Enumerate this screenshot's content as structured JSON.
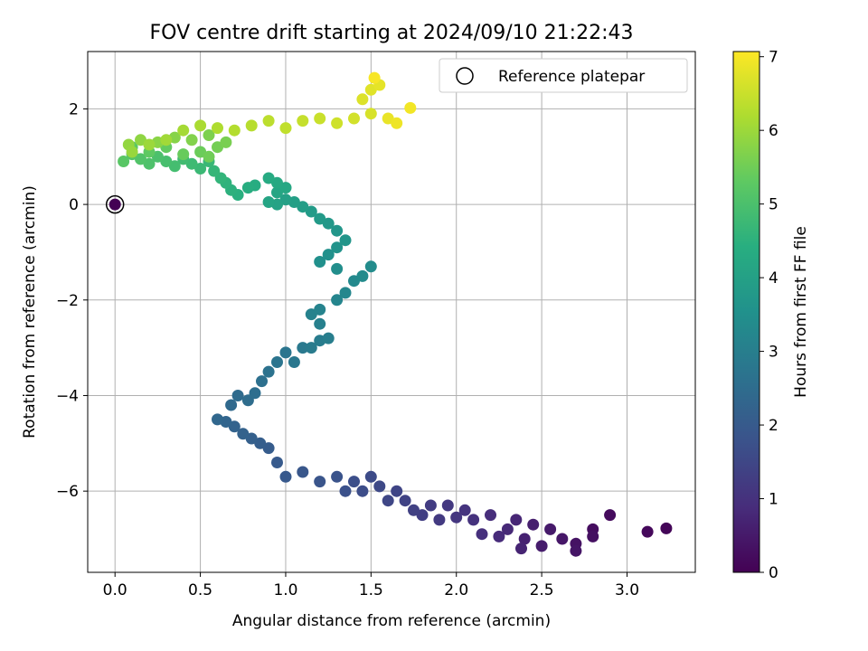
{
  "chart_data": {
    "type": "scatter",
    "title": "FOV centre drift starting at 2024/09/10 21:22:43",
    "xlabel": "Angular distance from reference (arcmin)",
    "ylabel": "Rotation from reference (arcmin)",
    "xlim": [
      -0.16,
      3.4
    ],
    "ylim": [
      -7.7,
      3.2
    ],
    "xticks": [
      0.0,
      0.5,
      1.0,
      1.5,
      2.0,
      2.5,
      3.0
    ],
    "xtick_labels": [
      "0.0",
      "0.5",
      "1.0",
      "1.5",
      "2.0",
      "2.5",
      "3.0"
    ],
    "yticks": [
      2,
      0,
      -2,
      -4,
      -6
    ],
    "ytick_labels": [
      "2",
      "0",
      "−2",
      "−4",
      "−6"
    ],
    "grid": true,
    "colormap": "viridis",
    "colorbar": {
      "label": "Hours from first FF file",
      "range": [
        0,
        7.07
      ],
      "ticks": [
        0,
        1,
        2,
        3,
        4,
        5,
        6,
        7
      ],
      "tick_labels": [
        "0",
        "1",
        "2",
        "3",
        "4",
        "5",
        "6",
        "7"
      ]
    },
    "legend": {
      "position": "top-right",
      "entries": [
        "Reference platepar"
      ]
    },
    "reference_point": {
      "x": 0.0,
      "y": 0.0,
      "hours": 0.0,
      "label": "Reference platepar"
    },
    "series_hours": [
      [
        0.1,
        3.23,
        -6.78
      ],
      [
        0.15,
        3.12,
        -6.85
      ],
      [
        0.2,
        2.9,
        -6.5
      ],
      [
        0.25,
        2.8,
        -6.8
      ],
      [
        0.3,
        2.8,
        -6.95
      ],
      [
        0.35,
        2.7,
        -7.1
      ],
      [
        0.4,
        2.7,
        -7.25
      ],
      [
        0.45,
        2.62,
        -7.0
      ],
      [
        0.5,
        2.55,
        -6.8
      ],
      [
        0.55,
        2.5,
        -7.15
      ],
      [
        0.6,
        2.45,
        -6.7
      ],
      [
        0.65,
        2.4,
        -7.0
      ],
      [
        0.7,
        2.38,
        -7.2
      ],
      [
        0.75,
        2.35,
        -6.6
      ],
      [
        0.8,
        2.3,
        -6.8
      ],
      [
        0.85,
        2.25,
        -6.95
      ],
      [
        0.9,
        2.2,
        -6.5
      ],
      [
        0.95,
        2.15,
        -6.9
      ],
      [
        1.0,
        2.1,
        -6.6
      ],
      [
        1.05,
        2.05,
        -6.4
      ],
      [
        1.1,
        2.0,
        -6.55
      ],
      [
        1.15,
        1.95,
        -6.3
      ],
      [
        1.2,
        1.9,
        -6.6
      ],
      [
        1.25,
        1.85,
        -6.3
      ],
      [
        1.3,
        1.8,
        -6.5
      ],
      [
        1.35,
        1.75,
        -6.4
      ],
      [
        1.4,
        1.7,
        -6.2
      ],
      [
        1.45,
        1.65,
        -6.0
      ],
      [
        1.5,
        1.6,
        -6.2
      ],
      [
        1.55,
        1.55,
        -5.9
      ],
      [
        1.6,
        1.5,
        -5.7
      ],
      [
        1.65,
        1.45,
        -6.0
      ],
      [
        1.7,
        1.4,
        -5.8
      ],
      [
        1.75,
        1.35,
        -6.0
      ],
      [
        1.8,
        1.3,
        -5.7
      ],
      [
        1.85,
        1.2,
        -5.8
      ],
      [
        1.9,
        1.1,
        -5.6
      ],
      [
        1.95,
        1.0,
        -5.7
      ],
      [
        2.0,
        0.95,
        -5.4
      ],
      [
        2.05,
        0.9,
        -5.1
      ],
      [
        2.1,
        0.85,
        -5.0
      ],
      [
        2.15,
        0.8,
        -4.9
      ],
      [
        2.2,
        0.75,
        -4.8
      ],
      [
        2.25,
        0.7,
        -4.65
      ],
      [
        2.3,
        0.65,
        -4.55
      ],
      [
        2.35,
        0.6,
        -4.5
      ],
      [
        2.4,
        0.68,
        -4.2
      ],
      [
        2.45,
        0.72,
        -4.0
      ],
      [
        2.5,
        0.78,
        -4.1
      ],
      [
        2.55,
        0.82,
        -3.95
      ],
      [
        2.6,
        0.86,
        -3.7
      ],
      [
        2.65,
        0.9,
        -3.5
      ],
      [
        2.7,
        0.95,
        -3.3
      ],
      [
        2.75,
        1.0,
        -3.1
      ],
      [
        2.8,
        1.05,
        -3.3
      ],
      [
        2.85,
        1.1,
        -3.0
      ],
      [
        2.9,
        1.15,
        -3.0
      ],
      [
        2.95,
        1.2,
        -2.85
      ],
      [
        3.0,
        1.25,
        -2.8
      ],
      [
        3.05,
        1.2,
        -2.5
      ],
      [
        3.1,
        1.15,
        -2.3
      ],
      [
        3.15,
        1.2,
        -2.2
      ],
      [
        3.2,
        1.3,
        -2.0
      ],
      [
        3.25,
        1.35,
        -1.85
      ],
      [
        3.3,
        1.4,
        -1.6
      ],
      [
        3.35,
        1.45,
        -1.5
      ],
      [
        3.4,
        1.5,
        -1.3
      ],
      [
        3.45,
        1.3,
        -1.35
      ],
      [
        3.5,
        1.2,
        -1.2
      ],
      [
        3.55,
        1.25,
        -1.05
      ],
      [
        3.6,
        1.3,
        -0.9
      ],
      [
        3.65,
        1.35,
        -0.75
      ],
      [
        3.7,
        1.3,
        -0.55
      ],
      [
        3.75,
        1.25,
        -0.4
      ],
      [
        3.8,
        1.2,
        -0.3
      ],
      [
        3.85,
        1.15,
        -0.15
      ],
      [
        3.9,
        1.1,
        -0.05
      ],
      [
        3.95,
        1.05,
        0.05
      ],
      [
        4.0,
        1.0,
        0.1
      ],
      [
        4.05,
        0.95,
        0.0
      ],
      [
        4.1,
        0.9,
        0.05
      ],
      [
        4.15,
        0.95,
        0.25
      ],
      [
        4.2,
        1.0,
        0.35
      ],
      [
        4.25,
        0.95,
        0.45
      ],
      [
        4.3,
        0.9,
        0.55
      ],
      [
        4.35,
        0.82,
        0.4
      ],
      [
        4.4,
        0.78,
        0.35
      ],
      [
        4.45,
        0.72,
        0.2
      ],
      [
        4.5,
        0.68,
        0.3
      ],
      [
        4.55,
        0.65,
        0.45
      ],
      [
        4.6,
        0.62,
        0.55
      ],
      [
        4.65,
        0.58,
        0.7
      ],
      [
        4.7,
        0.55,
        0.9
      ],
      [
        4.75,
        0.5,
        0.75
      ],
      [
        4.8,
        0.45,
        0.85
      ],
      [
        4.85,
        0.4,
        0.95
      ],
      [
        4.9,
        0.35,
        0.8
      ],
      [
        4.95,
        0.3,
        0.9
      ],
      [
        5.0,
        0.25,
        1.0
      ],
      [
        5.05,
        0.2,
        0.85
      ],
      [
        5.1,
        0.15,
        0.95
      ],
      [
        5.15,
        0.1,
        1.05
      ],
      [
        5.2,
        0.05,
        0.9
      ],
      [
        5.25,
        0.1,
        1.2
      ],
      [
        5.3,
        0.2,
        1.1
      ],
      [
        5.35,
        0.3,
        1.2
      ],
      [
        5.4,
        0.4,
        1.05
      ],
      [
        5.45,
        0.5,
        1.1
      ],
      [
        5.5,
        0.55,
        1.0
      ],
      [
        5.55,
        0.6,
        1.2
      ],
      [
        5.6,
        0.65,
        1.3
      ],
      [
        5.65,
        0.55,
        1.45
      ],
      [
        5.7,
        0.45,
        1.35
      ],
      [
        5.75,
        0.35,
        1.4
      ],
      [
        5.8,
        0.25,
        1.3
      ],
      [
        5.85,
        0.15,
        1.35
      ],
      [
        5.9,
        0.08,
        1.25
      ],
      [
        5.95,
        0.1,
        1.1
      ],
      [
        6.0,
        0.2,
        1.25
      ],
      [
        6.05,
        0.3,
        1.35
      ],
      [
        6.1,
        0.4,
        1.55
      ],
      [
        6.15,
        0.5,
        1.65
      ],
      [
        6.2,
        0.6,
        1.6
      ],
      [
        6.25,
        0.7,
        1.55
      ],
      [
        6.3,
        0.8,
        1.65
      ],
      [
        6.35,
        0.9,
        1.75
      ],
      [
        6.4,
        1.0,
        1.6
      ],
      [
        6.45,
        1.1,
        1.75
      ],
      [
        6.5,
        1.2,
        1.8
      ],
      [
        6.55,
        1.3,
        1.7
      ],
      [
        6.6,
        1.4,
        1.8
      ],
      [
        6.65,
        1.5,
        1.9
      ],
      [
        6.7,
        1.45,
        2.2
      ],
      [
        6.75,
        1.5,
        2.4
      ],
      [
        6.8,
        1.55,
        2.5
      ],
      [
        6.85,
        1.6,
        1.8
      ],
      [
        6.9,
        1.65,
        1.7
      ],
      [
        6.95,
        1.73,
        2.02
      ],
      [
        7.0,
        1.52,
        2.65
      ]
    ]
  }
}
